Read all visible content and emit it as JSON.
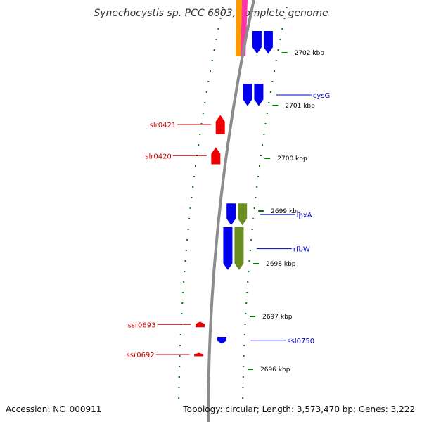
{
  "title": "Synechocystis sp. PCC 6803, complete genome",
  "accession": "Accession: NC_000911",
  "topology": "Topology: circular; Length: 3,573,470 bp; Genes: 3,222",
  "colors": {
    "backbone": "#8c8c8c",
    "forward_cds": "#0000ee",
    "reverse_cds": "#ee0000",
    "track_olive": "#6b8e23",
    "track_orange": "#ff9900",
    "track_pink": "#ff33aa",
    "tick": "#007700",
    "label_forward": "#0000cc",
    "label_reverse": "#cc0000"
  },
  "scale_labels": [
    {
      "text": "2702 kbp",
      "kbp": 2702
    },
    {
      "text": "2701 kbp",
      "kbp": 2701
    },
    {
      "text": "2700 kbp",
      "kbp": 2700
    },
    {
      "text": "2699 kbp",
      "kbp": 2699
    },
    {
      "text": "2698 kbp",
      "kbp": 2698
    },
    {
      "text": "2697 kbp",
      "kbp": 2697
    },
    {
      "text": "2696 kbp",
      "kbp": 2696
    }
  ],
  "genes": [
    {
      "label": "cysG",
      "strand": "forward",
      "start_kbp": 2701.42,
      "end_kbp": 2700.98
    },
    {
      "label": "slr0421",
      "strand": "reverse",
      "start_kbp": 2700.83,
      "end_kbp": 2700.45
    },
    {
      "label": "slr0420",
      "strand": "reverse",
      "start_kbp": 2700.22,
      "end_kbp": 2699.88
    },
    {
      "label": "lpxA",
      "strand": "forward",
      "start_kbp": 2699.15,
      "end_kbp": 2698.72
    },
    {
      "label": "rfbW",
      "strand": "forward",
      "start_kbp": 2698.7,
      "end_kbp": 2697.87
    },
    {
      "label": "ssr0693",
      "strand": "reverse",
      "start_kbp": 2696.91,
      "end_kbp": 2696.79
    },
    {
      "label": "ssl0750",
      "strand": "forward",
      "start_kbp": 2696.62,
      "end_kbp": 2696.48
    },
    {
      "label": "ssr0692",
      "strand": "reverse",
      "start_kbp": 2696.32,
      "end_kbp": 2696.24
    },
    {
      "label": "",
      "strand": "forward",
      "start_kbp": 2702.42,
      "end_kbp": 2701.97
    }
  ]
}
